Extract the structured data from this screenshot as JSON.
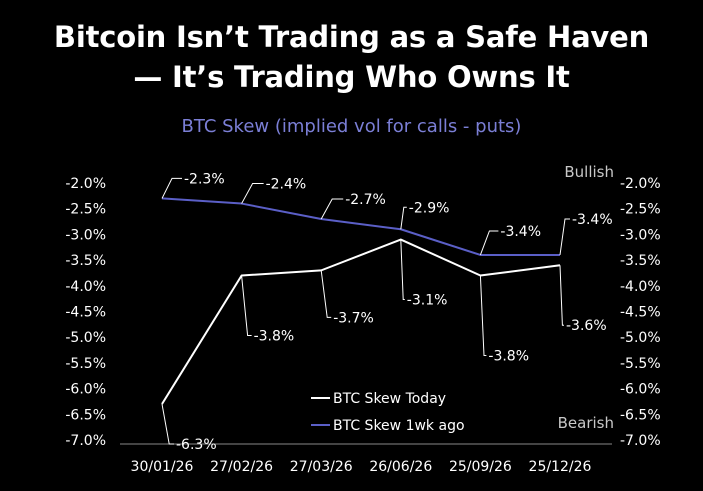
{
  "title_line1": "Bitcoin Isn’t Trading as a Safe Haven",
  "title_line2": "— It’s Trading Who Owns It",
  "chart_data": {
    "type": "line",
    "title": "BTC Skew (implied vol for calls - puts)",
    "categories": [
      "30/01/26",
      "27/02/26",
      "27/03/26",
      "26/06/26",
      "25/09/26",
      "25/12/26"
    ],
    "series": [
      {
        "name": "BTC Skew Today",
        "color": "#ffffff",
        "values": [
          -6.3,
          -3.8,
          -3.7,
          -3.1,
          -3.8,
          -3.6
        ],
        "labels": [
          "-6.3%",
          "-3.8%",
          "-3.7%",
          "-3.1%",
          "-3.8%",
          "-3.6%"
        ]
      },
      {
        "name": "BTC Skew 1wk ago",
        "color": "#5b5fc7",
        "values": [
          -2.3,
          -2.4,
          -2.7,
          -2.9,
          -3.4,
          -3.4
        ],
        "labels": [
          "-2.3%",
          "-2.4%",
          "-2.7%",
          "-2.9%",
          "-3.4%",
          "-3.4%"
        ]
      }
    ],
    "ylim": [
      -7.0,
      -2.0
    ],
    "y_ticks": [
      "-2.0%",
      "-2.5%",
      "-3.0%",
      "-3.5%",
      "-4.0%",
      "-4.5%",
      "-5.0%",
      "-5.5%",
      "-6.0%",
      "-6.5%",
      "-7.0%"
    ],
    "y_axis_right": true,
    "annotations": {
      "top": "Bullish",
      "bottom": "Bearish"
    },
    "grid": false,
    "legend_position": "bottom-center"
  }
}
